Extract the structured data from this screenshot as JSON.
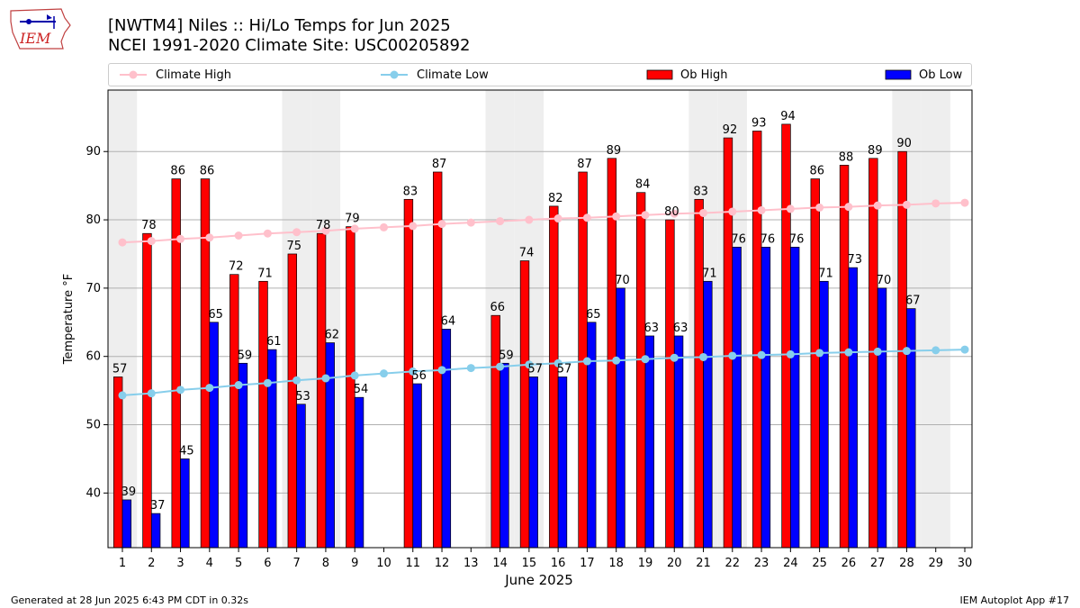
{
  "header": {
    "title_line1": "[NWTM4] Niles :: Hi/Lo Temps for Jun 2025",
    "title_line2": "NCEI 1991-2020 Climate Site: USC00205892",
    "logo_text": "IEM"
  },
  "legend": {
    "climate_high": "Climate High",
    "climate_low": "Climate Low",
    "ob_high": "Ob High",
    "ob_low": "Ob Low"
  },
  "footer": {
    "generated": "Generated at 28 Jun 2025 6:43 PM CDT in 0.32s",
    "app": "IEM Autoplot App #17"
  },
  "colors": {
    "ob_high": "#ff0000",
    "ob_low": "#0000ff",
    "climate_high": "#ffc0cb",
    "climate_low": "#87ceeb",
    "weekend_shade": "#eeeeee",
    "grid": "#b0b0b0"
  },
  "chart_data": {
    "type": "bar",
    "xlabel": "June 2025",
    "ylabel": "Temperature °F",
    "ylim": [
      32,
      99
    ],
    "yticks": [
      40,
      50,
      60,
      70,
      80,
      90
    ],
    "grid": "horizontal",
    "legend_placement": "top",
    "categories": [
      "1",
      "2",
      "3",
      "4",
      "5",
      "6",
      "7",
      "8",
      "9",
      "10",
      "11",
      "12",
      "13",
      "14",
      "15",
      "16",
      "17",
      "18",
      "19",
      "20",
      "21",
      "22",
      "23",
      "24",
      "25",
      "26",
      "27",
      "28",
      "29",
      "30"
    ],
    "shaded_days": [
      1,
      7,
      8,
      14,
      15,
      21,
      22,
      28,
      29
    ],
    "series": [
      {
        "name": "Ob High",
        "kind": "bar",
        "values": [
          57,
          78,
          86,
          86,
          72,
          71,
          75,
          78,
          79,
          null,
          83,
          87,
          null,
          66,
          74,
          82,
          87,
          89,
          84,
          80,
          83,
          92,
          93,
          94,
          86,
          88,
          89,
          90,
          null,
          null
        ]
      },
      {
        "name": "Ob Low",
        "kind": "bar",
        "values": [
          39,
          37,
          45,
          65,
          59,
          61,
          53,
          62,
          54,
          null,
          56,
          64,
          null,
          59,
          57,
          57,
          65,
          70,
          63,
          63,
          71,
          76,
          76,
          76,
          71,
          73,
          70,
          67,
          null,
          null
        ]
      },
      {
        "name": "Climate High",
        "kind": "line",
        "values": [
          76.7,
          76.9,
          77.2,
          77.4,
          77.7,
          78.0,
          78.2,
          78.4,
          78.7,
          78.9,
          79.1,
          79.4,
          79.6,
          79.8,
          80.0,
          80.2,
          80.3,
          80.5,
          80.7,
          80.9,
          81.0,
          81.2,
          81.4,
          81.6,
          81.8,
          81.9,
          82.1,
          82.2,
          82.4,
          82.5
        ]
      },
      {
        "name": "Climate Low",
        "kind": "line",
        "values": [
          54.3,
          54.6,
          55.1,
          55.4,
          55.8,
          56.1,
          56.5,
          56.8,
          57.2,
          57.5,
          57.8,
          58.0,
          58.3,
          58.5,
          58.8,
          59.0,
          59.3,
          59.4,
          59.6,
          59.8,
          59.9,
          60.1,
          60.2,
          60.3,
          60.5,
          60.6,
          60.7,
          60.8,
          60.9,
          61.0
        ]
      }
    ]
  }
}
